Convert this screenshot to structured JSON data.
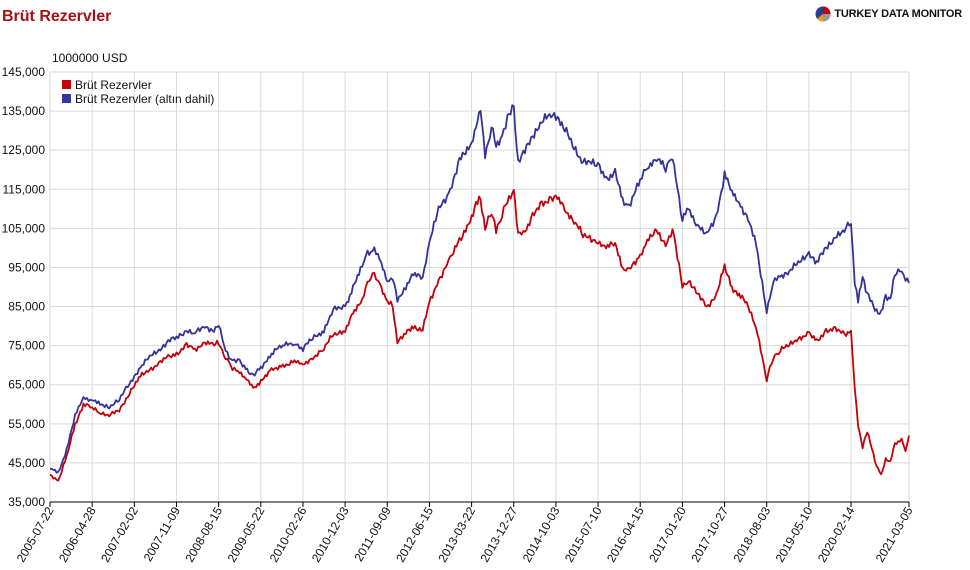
{
  "header": {
    "title": "Brüt Rezervler",
    "brand": "TURKEY DATA MONITOR",
    "brand_icon": "pie-chart-logo-icon"
  },
  "colors": {
    "title": "#a50f15",
    "series_1": "#c4000b",
    "series_2": "#33339a",
    "grid": "#d9d9d9",
    "axis": "#000000"
  },
  "chart_data": {
    "type": "line",
    "title": "Brüt Rezervler",
    "unit_label": "1000000 USD",
    "xlabel": "",
    "ylabel": "",
    "ylim": [
      35000,
      145000
    ],
    "yticks": [
      35000,
      45000,
      55000,
      65000,
      75000,
      85000,
      95000,
      105000,
      115000,
      125000,
      135000,
      145000
    ],
    "ytick_labels": [
      "35,000",
      "45,000",
      "55,000",
      "65,000",
      "75,000",
      "85,000",
      "95,000",
      "105,000",
      "115,000",
      "125,000",
      "135,000",
      "145,000"
    ],
    "xticks": [
      "2005-07-22",
      "2006-04-28",
      "2007-02-02",
      "2007-11-09",
      "2008-08-15",
      "2009-05-22",
      "2010-02-26",
      "2010-12-03",
      "2011-09-09",
      "2012-06-15",
      "2013-03-22",
      "2013-12-27",
      "2014-10-03",
      "2015-07-10",
      "2016-04-15",
      "2017-01-20",
      "2017-10-27",
      "2018-08-03",
      "2019-05-10",
      "2020-02-14",
      "2021-03-05"
    ],
    "grid": true,
    "legend": "top-left",
    "series": [
      {
        "name": "Brüt Rezervler",
        "color": "#c4000b",
        "x": [
          "2005-07-22",
          "2005-09-15",
          "2005-11-10",
          "2006-01-05",
          "2006-03-01",
          "2006-04-28",
          "2006-06-20",
          "2006-08-20",
          "2006-10-25",
          "2007-01-01",
          "2007-03-15",
          "2007-05-15",
          "2007-07-15",
          "2007-09-15",
          "2007-11-09",
          "2008-01-15",
          "2008-03-10",
          "2008-05-15",
          "2008-07-15",
          "2008-08-15",
          "2008-10-01",
          "2008-11-15",
          "2009-01-01",
          "2009-02-20",
          "2009-04-01",
          "2009-05-22",
          "2009-08-01",
          "2009-10-15",
          "2010-01-01",
          "2010-02-26",
          "2010-05-01",
          "2010-07-15",
          "2010-09-15",
          "2010-12-03",
          "2011-01-25",
          "2011-03-15",
          "2011-05-01",
          "2011-06-15",
          "2011-08-01",
          "2011-09-09",
          "2011-10-15",
          "2011-11-15",
          "2012-01-10",
          "2012-03-01",
          "2012-05-01",
          "2012-06-15",
          "2012-08-15",
          "2012-11-01",
          "2013-01-01",
          "2013-03-22",
          "2013-04-20",
          "2013-05-20",
          "2013-06-20",
          "2013-08-01",
          "2013-09-01",
          "2013-10-10",
          "2013-11-15",
          "2013-12-27",
          "2014-01-25",
          "2014-03-01",
          "2014-05-01",
          "2014-07-01",
          "2014-09-01",
          "2014-10-03",
          "2014-12-01",
          "2015-02-01",
          "2015-04-01",
          "2015-07-10",
          "2015-09-01",
          "2015-11-01",
          "2015-12-20",
          "2016-02-01",
          "2016-04-15",
          "2016-06-01",
          "2016-08-01",
          "2016-10-01",
          "2016-11-15",
          "2017-01-20",
          "2017-03-01",
          "2017-05-01",
          "2017-07-01",
          "2017-09-01",
          "2017-10-27",
          "2017-12-15",
          "2018-02-01",
          "2018-04-01",
          "2018-05-25",
          "2018-08-03",
          "2018-09-15",
          "2018-11-01",
          "2019-01-01",
          "2019-03-01",
          "2019-05-10",
          "2019-07-01",
          "2019-09-01",
          "2019-11-01",
          "2020-01-01",
          "2020-02-14",
          "2020-03-10",
          "2020-04-01",
          "2020-05-01",
          "2020-06-01",
          "2020-07-01",
          "2020-08-01",
          "2020-09-01",
          "2020-10-01",
          "2020-11-01",
          "2020-12-01",
          "2021-01-15",
          "2021-02-10",
          "2021-03-05"
        ],
        "values": [
          42000,
          40500,
          46500,
          55000,
          60000,
          59000,
          58000,
          57000,
          58500,
          63000,
          67000,
          69000,
          70500,
          72000,
          73000,
          75000,
          74000,
          76000,
          75000,
          76000,
          72000,
          69000,
          68500,
          66000,
          64000,
          66000,
          68500,
          70000,
          71000,
          70000,
          72000,
          74000,
          78000,
          79000,
          83000,
          86000,
          91000,
          93000,
          90000,
          86000,
          85000,
          76000,
          78000,
          80000,
          79000,
          86000,
          92000,
          97000,
          102000,
          108000,
          111000,
          113000,
          105000,
          109000,
          105000,
          108000,
          112000,
          115000,
          103000,
          104000,
          108000,
          111000,
          113000,
          113000,
          110000,
          107000,
          103000,
          102000,
          100000,
          101000,
          95000,
          94000,
          98000,
          102000,
          104000,
          101000,
          105000,
          90000,
          92000,
          88000,
          85000,
          88000,
          95000,
          90000,
          88000,
          85000,
          80000,
          66000,
          72000,
          74000,
          75000,
          77000,
          78000,
          76000,
          79000,
          79000,
          78000,
          79000,
          64000,
          55000,
          49000,
          53000,
          49000,
          44000,
          42000,
          46000,
          45000,
          50000,
          51000,
          48000,
          52000
        ]
      },
      {
        "name": "Brüt Rezervler (altın dahil)",
        "color": "#33339a",
        "x": [
          "2005-07-22",
          "2005-09-15",
          "2005-11-10",
          "2006-01-05",
          "2006-03-01",
          "2006-04-28",
          "2006-06-20",
          "2006-08-20",
          "2006-10-25",
          "2007-01-01",
          "2007-03-15",
          "2007-05-15",
          "2007-07-15",
          "2007-09-15",
          "2007-11-09",
          "2008-01-15",
          "2008-03-10",
          "2008-05-15",
          "2008-07-15",
          "2008-08-15",
          "2008-10-01",
          "2008-11-15",
          "2009-01-01",
          "2009-02-20",
          "2009-04-01",
          "2009-05-22",
          "2009-08-01",
          "2009-10-15",
          "2010-01-01",
          "2010-02-26",
          "2010-05-01",
          "2010-07-15",
          "2010-09-15",
          "2010-12-03",
          "2011-01-25",
          "2011-03-15",
          "2011-05-01",
          "2011-06-15",
          "2011-08-01",
          "2011-09-09",
          "2011-10-15",
          "2011-11-15",
          "2012-01-10",
          "2012-03-01",
          "2012-05-01",
          "2012-06-15",
          "2012-08-15",
          "2012-11-01",
          "2013-01-01",
          "2013-03-22",
          "2013-04-20",
          "2013-05-20",
          "2013-06-20",
          "2013-08-01",
          "2013-09-01",
          "2013-10-10",
          "2013-11-15",
          "2013-12-27",
          "2014-01-25",
          "2014-03-01",
          "2014-05-01",
          "2014-07-01",
          "2014-09-01",
          "2014-10-03",
          "2014-12-01",
          "2015-02-01",
          "2015-04-01",
          "2015-07-10",
          "2015-09-01",
          "2015-11-01",
          "2015-12-20",
          "2016-02-01",
          "2016-04-15",
          "2016-06-01",
          "2016-08-01",
          "2016-10-01",
          "2016-11-15",
          "2017-01-20",
          "2017-03-01",
          "2017-05-01",
          "2017-07-01",
          "2017-09-01",
          "2017-10-27",
          "2017-12-15",
          "2018-02-01",
          "2018-04-01",
          "2018-05-25",
          "2018-08-03",
          "2018-09-15",
          "2018-11-01",
          "2019-01-01",
          "2019-03-01",
          "2019-05-10",
          "2019-07-01",
          "2019-09-01",
          "2019-11-01",
          "2020-01-01",
          "2020-02-14",
          "2020-03-10",
          "2020-04-01",
          "2020-05-01",
          "2020-06-01",
          "2020-07-01",
          "2020-08-01",
          "2020-09-01",
          "2020-10-01",
          "2020-11-01",
          "2020-12-01",
          "2021-01-15",
          "2021-02-10",
          "2021-03-05"
        ],
        "values": [
          43500,
          42500,
          48500,
          57000,
          62000,
          61000,
          60000,
          59500,
          61000,
          65500,
          69500,
          72000,
          74000,
          76000,
          77000,
          79000,
          78000,
          80000,
          79000,
          80000,
          74000,
          71000,
          71000,
          69000,
          67000,
          69500,
          73000,
          75000,
          76000,
          74000,
          77000,
          79000,
          84000,
          85000,
          90000,
          94000,
          99000,
          99500,
          96000,
          92000,
          92000,
          87000,
          90000,
          93000,
          93000,
          101000,
          110000,
          115000,
          122000,
          127000,
          131000,
          135000,
          124000,
          131000,
          126000,
          129000,
          133000,
          136000,
          122000,
          124000,
          129000,
          132000,
          134000,
          134000,
          130000,
          126000,
          122000,
          121000,
          118000,
          119000,
          112000,
          111000,
          117000,
          121000,
          123000,
          120000,
          124000,
          107000,
          110000,
          106000,
          103000,
          108000,
          119000,
          114000,
          112000,
          107000,
          101000,
          84000,
          91000,
          93000,
          94000,
          96000,
          99000,
          96000,
          100000,
          103000,
          104000,
          107000,
          91000,
          86000,
          93000,
          88000,
          86000,
          84000,
          83000,
          88000,
          87000,
          93000,
          95000,
          92000,
          91000
        ]
      }
    ]
  }
}
